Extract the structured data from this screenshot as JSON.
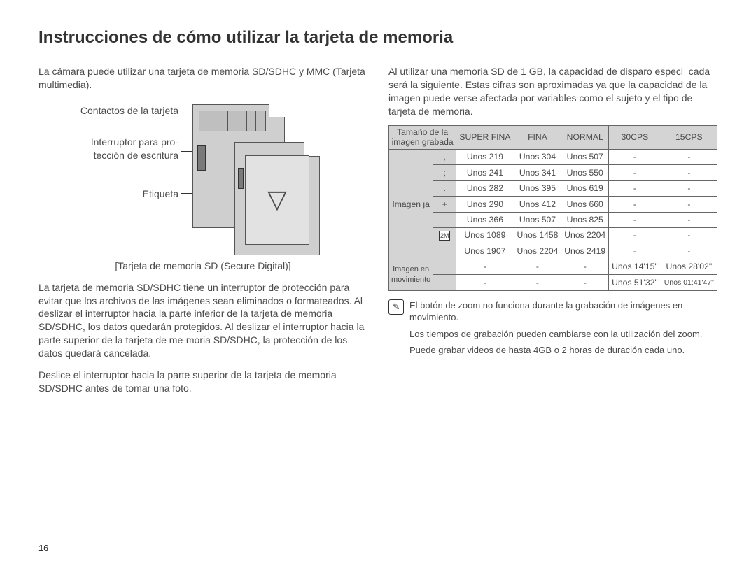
{
  "pageNumber": "16",
  "title": "Instrucciones de cómo utilizar la tarjeta de memoria",
  "left": {
    "intro": "La cámara puede utilizar una tarjeta de memoria SD/SDHC y MMC (Tarjeta multimedia).",
    "callouts": {
      "contacts": "Contactos de la tarjeta",
      "switch": "Interruptor para pro-\ntección de escritura",
      "label": "Etiqueta"
    },
    "caption": "[Tarjeta de memoria SD (Secure Digital)]",
    "para1": "La tarjeta de memoria SD/SDHC tiene un interruptor de protección para evitar que los archivos de las imágenes sean eliminados o formateados. Al deslizar el interruptor hacia la parte inferior de la tarjeta de memoria SD/SDHC, los datos quedarán protegidos. Al deslizar el interruptor hacia la parte superior de la tarjeta de me-moria SD/SDHC, la protección de los datos quedará cancelada.",
    "para2": "Deslice el interruptor hacia la parte superior de la tarjeta de memoria SD/SDHC antes de tomar una foto."
  },
  "right": {
    "intro": "Al utilizar una memoria SD de 1 GB, la capacidad de disparo especi  cada será la siguiente. Estas cifras son aproximadas ya que la capacidad de la imagen puede verse afectada por variables como el sujeto y el tipo de tarjeta de memoria.",
    "table": {
      "headers": [
        "Tamaño de la imagen grabada",
        "SUPER FINA",
        "FINA",
        "NORMAL",
        "30CPS",
        "15CPS"
      ],
      "stillLabel": "Imagen ja",
      "stillRowHeads": [
        ",",
        ";",
        ".",
        "+",
        "",
        "2M",
        ""
      ],
      "stillRows": [
        [
          "Unos 219",
          "Unos 304",
          "Unos 507",
          "-",
          "-"
        ],
        [
          "Unos 241",
          "Unos 341",
          "Unos 550",
          "-",
          "-"
        ],
        [
          "Unos 282",
          "Unos 395",
          "Unos 619",
          "-",
          "-"
        ],
        [
          "Unos 290",
          "Unos 412",
          "Unos 660",
          "-",
          "-"
        ],
        [
          "Unos 366",
          "Unos 507",
          "Unos 825",
          "-",
          "-"
        ],
        [
          "Unos 1089",
          "Unos 1458",
          "Unos 2204",
          "-",
          "-"
        ],
        [
          "Unos 1907",
          "Unos 2204",
          "Unos 2419",
          "-",
          "-"
        ]
      ],
      "videoLabel": "Imagen en movimiento",
      "videoRows": [
        [
          "-",
          "-",
          "-",
          "Unos 14'15\"",
          "Unos 28'02\""
        ],
        [
          "-",
          "-",
          "-",
          "Unos 51'32\"",
          "Unos 01:41'47\""
        ]
      ]
    },
    "note1": "El botón de zoom no funciona durante la grabación de imágenes en movimiento.",
    "note2": "Los tiempos de grabación pueden cambiarse con la utilización del zoom.",
    "note3": "Puede grabar videos de hasta 4GB o 2 horas de duración cada uno."
  }
}
